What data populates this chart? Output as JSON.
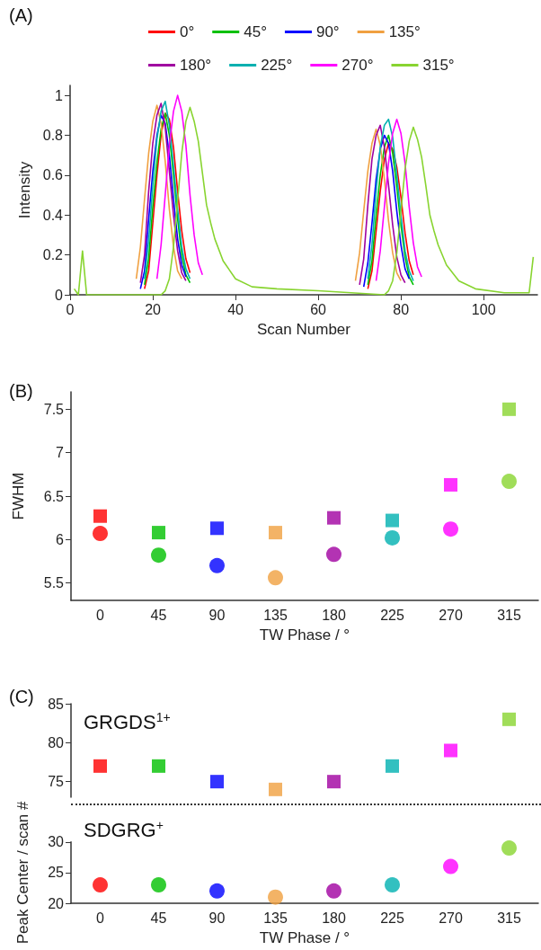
{
  "chart_data": [
    {
      "type": "line",
      "title": "(A)",
      "xlabel": "Scan Number",
      "ylabel": "Intensity",
      "xlim": [
        0,
        113
      ],
      "xticks": [
        0,
        20,
        40,
        60,
        80,
        100
      ],
      "ylim": [
        0,
        1.05
      ],
      "yticks": [
        0,
        0.2,
        0.4,
        0.6,
        0.8,
        1
      ],
      "legend": "top",
      "marker": "none",
      "grid": false,
      "series": [
        {
          "name": "0°",
          "color": "#ff0000",
          "x": [
            18,
            19,
            20,
            21,
            22,
            23,
            24,
            25,
            26,
            27,
            28,
            29,
            50,
            72,
            73,
            74,
            75,
            76,
            77,
            78,
            79,
            80,
            81,
            82,
            83
          ],
          "values": [
            0.03,
            0.12,
            0.36,
            0.6,
            0.8,
            0.91,
            0.88,
            0.74,
            0.52,
            0.32,
            0.18,
            0.11,
            null,
            0.03,
            0.12,
            0.32,
            0.52,
            0.68,
            0.76,
            0.73,
            0.64,
            0.49,
            0.31,
            0.17,
            0.1
          ]
        },
        {
          "name": "45°",
          "color": "#00c000",
          "x": [
            18,
            19,
            20,
            21,
            22,
            23,
            24,
            25,
            26,
            27,
            28,
            29,
            50,
            72,
            73,
            74,
            75,
            76,
            77,
            78,
            79,
            80,
            81,
            82,
            83
          ],
          "values": [
            0.05,
            0.18,
            0.44,
            0.66,
            0.83,
            0.91,
            0.8,
            0.6,
            0.38,
            0.2,
            0.1,
            0.06,
            null,
            0.05,
            0.17,
            0.4,
            0.6,
            0.74,
            0.8,
            0.71,
            0.54,
            0.35,
            0.19,
            0.09,
            0.05
          ]
        },
        {
          "name": "90°",
          "color": "#0000ff",
          "x": [
            17,
            18,
            19,
            20,
            21,
            22,
            23,
            24,
            25,
            26,
            27,
            28,
            50,
            71,
            72,
            73,
            74,
            75,
            76,
            77,
            78,
            79,
            80,
            81,
            82
          ],
          "values": [
            0.03,
            0.12,
            0.38,
            0.62,
            0.8,
            0.9,
            0.86,
            0.7,
            0.48,
            0.28,
            0.15,
            0.09,
            null,
            0.04,
            0.16,
            0.36,
            0.58,
            0.73,
            0.8,
            0.76,
            0.62,
            0.42,
            0.25,
            0.13,
            0.08
          ]
        },
        {
          "name": "135°",
          "color": "#f0a040",
          "x": [
            16,
            17,
            18,
            19,
            20,
            21,
            22,
            23,
            24,
            25,
            26,
            27,
            50,
            69,
            70,
            71,
            72,
            73,
            74,
            75,
            76,
            77,
            78,
            79,
            80
          ],
          "values": [
            0.08,
            0.24,
            0.48,
            0.71,
            0.87,
            0.95,
            0.86,
            0.67,
            0.43,
            0.24,
            0.12,
            0.08,
            null,
            0.07,
            0.21,
            0.42,
            0.62,
            0.76,
            0.83,
            0.75,
            0.58,
            0.37,
            0.21,
            0.11,
            0.07
          ]
        },
        {
          "name": "180°",
          "color": "#a000a0",
          "x": [
            17,
            18,
            19,
            20,
            21,
            22,
            23,
            24,
            25,
            26,
            27,
            28,
            50,
            70,
            71,
            72,
            73,
            74,
            75,
            76,
            77,
            78,
            79,
            80,
            81
          ],
          "values": [
            0.06,
            0.2,
            0.52,
            0.76,
            0.9,
            0.96,
            0.84,
            0.62,
            0.4,
            0.22,
            0.11,
            0.07,
            null,
            0.05,
            0.18,
            0.45,
            0.68,
            0.8,
            0.85,
            0.74,
            0.55,
            0.35,
            0.19,
            0.1,
            0.06
          ]
        },
        {
          "name": "225°",
          "color": "#00b0b0",
          "x": [
            18,
            19,
            20,
            21,
            22,
            23,
            24,
            25,
            26,
            27,
            28,
            29,
            50,
            72,
            73,
            74,
            75,
            76,
            77,
            78,
            79,
            80,
            81,
            82,
            83
          ],
          "values": [
            0.08,
            0.27,
            0.55,
            0.78,
            0.92,
            0.97,
            0.85,
            0.65,
            0.43,
            0.24,
            0.13,
            0.08,
            null,
            0.08,
            0.25,
            0.52,
            0.74,
            0.85,
            0.88,
            0.79,
            0.6,
            0.4,
            0.22,
            0.12,
            0.07
          ]
        },
        {
          "name": "270°",
          "color": "#ff00ff",
          "x": [
            21,
            22,
            23,
            24,
            25,
            26,
            27,
            28,
            29,
            30,
            31,
            32,
            50,
            74,
            75,
            76,
            77,
            78,
            79,
            80,
            81,
            82,
            83,
            84,
            85
          ],
          "values": [
            0.08,
            0.25,
            0.5,
            0.75,
            0.92,
            1,
            0.92,
            0.75,
            0.5,
            0.3,
            0.16,
            0.1,
            null,
            0.07,
            0.22,
            0.44,
            0.66,
            0.81,
            0.88,
            0.81,
            0.66,
            0.44,
            0.26,
            0.14,
            0.09
          ]
        },
        {
          "name": "315°",
          "color": "#88d430",
          "x": [
            1,
            2,
            3,
            4,
            22,
            23,
            24,
            25,
            26,
            27,
            28,
            29,
            30,
            31,
            32,
            33,
            34,
            35,
            37,
            40,
            44,
            50,
            60,
            76,
            77,
            78,
            79,
            80,
            81,
            82,
            83,
            84,
            85,
            86,
            87,
            88,
            89,
            91,
            94,
            98,
            105,
            111,
            112
          ],
          "values": [
            0.03,
            0,
            0.22,
            0,
            0,
            0.02,
            0.08,
            0.24,
            0.47,
            0.71,
            0.87,
            0.94,
            0.87,
            0.77,
            0.61,
            0.45,
            0.36,
            0.28,
            0.17,
            0.08,
            0.04,
            0.03,
            0.02,
            0,
            0.02,
            0.07,
            0.21,
            0.42,
            0.63,
            0.77,
            0.84,
            0.78,
            0.69,
            0.55,
            0.4,
            0.32,
            0.25,
            0.15,
            0.07,
            0.03,
            0.01,
            0.01,
            0.19
          ]
        }
      ]
    },
    {
      "type": "scatter",
      "title": "(B)",
      "categories": [
        "0",
        "45",
        "90",
        "135",
        "180",
        "225",
        "270",
        "315"
      ],
      "xlabel": "TW Phase / °",
      "ylabel": "FWHM",
      "ylim": [
        5.3,
        7.7
      ],
      "yticks": [
        5.5,
        6,
        6.5,
        7,
        7.5
      ],
      "grid": false,
      "legend": false,
      "series": [
        {
          "marker": "square",
          "colors": [
            "#ff0000",
            "#00c000",
            "#0000ff",
            "#f0a040",
            "#a000a0",
            "#00b0b0",
            "#ff00ff",
            "#88d430"
          ],
          "values": [
            6.27,
            6.08,
            6.13,
            6.08,
            6.25,
            6.22,
            6.63,
            7.5
          ]
        },
        {
          "marker": "circle",
          "colors": [
            "#ff0000",
            "#00c000",
            "#0000ff",
            "#f0a040",
            "#a000a0",
            "#00b0b0",
            "#ff00ff",
            "#88d430"
          ],
          "values": [
            6.07,
            5.82,
            5.7,
            5.56,
            5.83,
            6.02,
            6.12,
            6.67
          ]
        }
      ]
    },
    {
      "type": "scatter",
      "title": "(C)",
      "categories": [
        "0",
        "45",
        "90",
        "135",
        "180",
        "225",
        "270",
        "315"
      ],
      "ylim": [
        73,
        85
      ],
      "yticks": [
        75,
        80,
        85
      ],
      "tick_labels": "y",
      "grid": false,
      "legend": false,
      "annotations": [
        "GRGDS$^{1+}$"
      ],
      "series": [
        {
          "marker": "square",
          "colors": [
            "#ff0000",
            "#00c000",
            "#0000ff",
            "#f0a040",
            "#a000a0",
            "#00b0b0",
            "#ff00ff",
            "#88d430"
          ],
          "values": [
            77,
            77,
            75,
            74,
            75,
            77,
            79,
            83
          ]
        }
      ]
    },
    {
      "type": "scatter",
      "categories": [
        "0",
        "45",
        "90",
        "135",
        "180",
        "225",
        "270",
        "315"
      ],
      "xlabel": "TW Phase / °",
      "ylabel": "Peak Center / scan #",
      "ylim": [
        20,
        30
      ],
      "yticks": [
        20,
        25,
        30
      ],
      "grid": false,
      "legend": false,
      "annotations": [
        "SDGRG$^{+}$"
      ],
      "series": [
        {
          "marker": "circle",
          "colors": [
            "#ff0000",
            "#00c000",
            "#0000ff",
            "#f0a040",
            "#a000a0",
            "#00b0b0",
            "#ff00ff",
            "#88d430"
          ],
          "values": [
            23,
            23,
            22,
            21,
            22,
            23,
            26,
            29
          ]
        }
      ]
    }
  ]
}
